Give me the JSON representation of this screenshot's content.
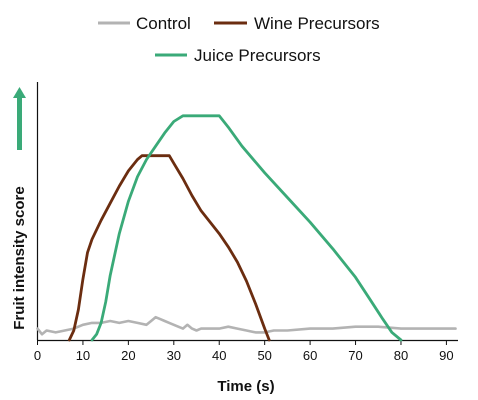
{
  "chart_data": {
    "type": "line",
    "xlabel": "Time (s)",
    "ylabel": "Fruit intensity score",
    "xlim": [
      0,
      92
    ],
    "xticks": [
      0,
      10,
      20,
      30,
      40,
      50,
      60,
      70,
      80,
      90
    ],
    "grid": false,
    "legend_position": "top",
    "series": [
      {
        "name": "Control",
        "color": "#b3b3b3",
        "x": [
          0,
          1,
          2,
          4,
          6,
          8,
          10,
          12,
          14,
          16,
          18,
          20,
          22,
          24,
          25,
          26,
          27,
          28,
          29,
          30,
          31,
          32,
          33,
          34,
          35,
          36,
          38,
          40,
          42,
          44,
          46,
          48,
          50,
          52,
          55,
          60,
          65,
          70,
          75,
          80,
          85,
          90,
          92
        ],
        "y": [
          0.06,
          0.03,
          0.05,
          0.04,
          0.05,
          0.06,
          0.08,
          0.09,
          0.09,
          0.1,
          0.09,
          0.1,
          0.09,
          0.08,
          0.1,
          0.12,
          0.11,
          0.1,
          0.09,
          0.08,
          0.07,
          0.06,
          0.08,
          0.06,
          0.05,
          0.06,
          0.06,
          0.06,
          0.07,
          0.06,
          0.05,
          0.04,
          0.04,
          0.05,
          0.05,
          0.06,
          0.06,
          0.07,
          0.07,
          0.06,
          0.06,
          0.06,
          0.06
        ]
      },
      {
        "name": "Wine Precursors",
        "color": "#6b2d10",
        "x": [
          7,
          8,
          9,
          10,
          11,
          12,
          14,
          16,
          18,
          20,
          22,
          23,
          27,
          29,
          30,
          32,
          34,
          36,
          38,
          40,
          42,
          44,
          46,
          48,
          50,
          51
        ],
        "y": [
          0.0,
          0.05,
          0.16,
          0.32,
          0.46,
          0.53,
          0.63,
          0.72,
          0.81,
          0.89,
          0.95,
          0.97,
          0.97,
          0.97,
          0.93,
          0.85,
          0.76,
          0.68,
          0.62,
          0.56,
          0.49,
          0.41,
          0.31,
          0.19,
          0.06,
          0.0
        ]
      },
      {
        "name": "Juice Precursors",
        "color": "#3aaa78",
        "x": [
          12,
          13,
          14,
          15,
          16,
          18,
          20,
          22,
          24,
          26,
          28,
          30,
          32,
          35,
          38,
          40,
          42,
          45,
          50,
          55,
          60,
          65,
          70,
          73,
          76,
          78,
          80
        ],
        "y": [
          0.0,
          0.03,
          0.09,
          0.2,
          0.34,
          0.56,
          0.73,
          0.86,
          0.95,
          1.02,
          1.09,
          1.15,
          1.18,
          1.18,
          1.18,
          1.18,
          1.12,
          1.02,
          0.88,
          0.75,
          0.62,
          0.48,
          0.33,
          0.22,
          0.11,
          0.04,
          0.0
        ]
      }
    ]
  }
}
